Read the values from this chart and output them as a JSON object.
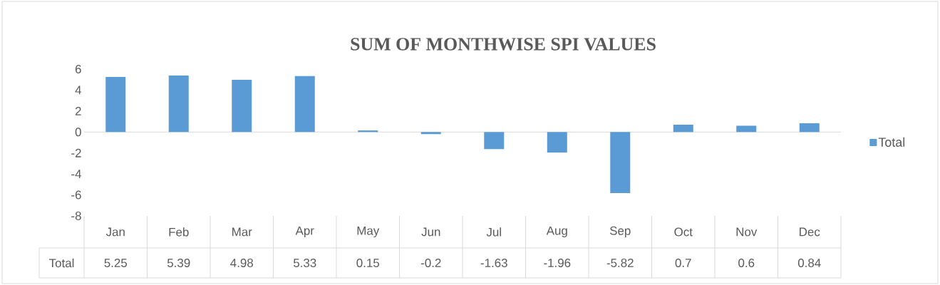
{
  "chart_data": {
    "type": "bar",
    "title": "SUM OF MONTHWISE SPI VALUES",
    "categories": [
      "Jan",
      "Feb",
      "Mar",
      "Apr",
      "May",
      "Jun",
      "Jul",
      "Aug",
      "Sep",
      "Oct",
      "Nov",
      "Dec"
    ],
    "series": [
      {
        "name": "Total",
        "color": "#5b9bd5",
        "values": [
          5.25,
          5.39,
          4.98,
          5.33,
          0.15,
          -0.2,
          -1.63,
          -1.96,
          -5.82,
          0.7,
          0.6,
          0.84
        ]
      }
    ],
    "ylim": [
      -8,
      6
    ],
    "yticks": [
      -8,
      -6,
      -4,
      -2,
      0,
      2,
      4,
      6
    ],
    "data_labels": true,
    "legend": "right"
  }
}
